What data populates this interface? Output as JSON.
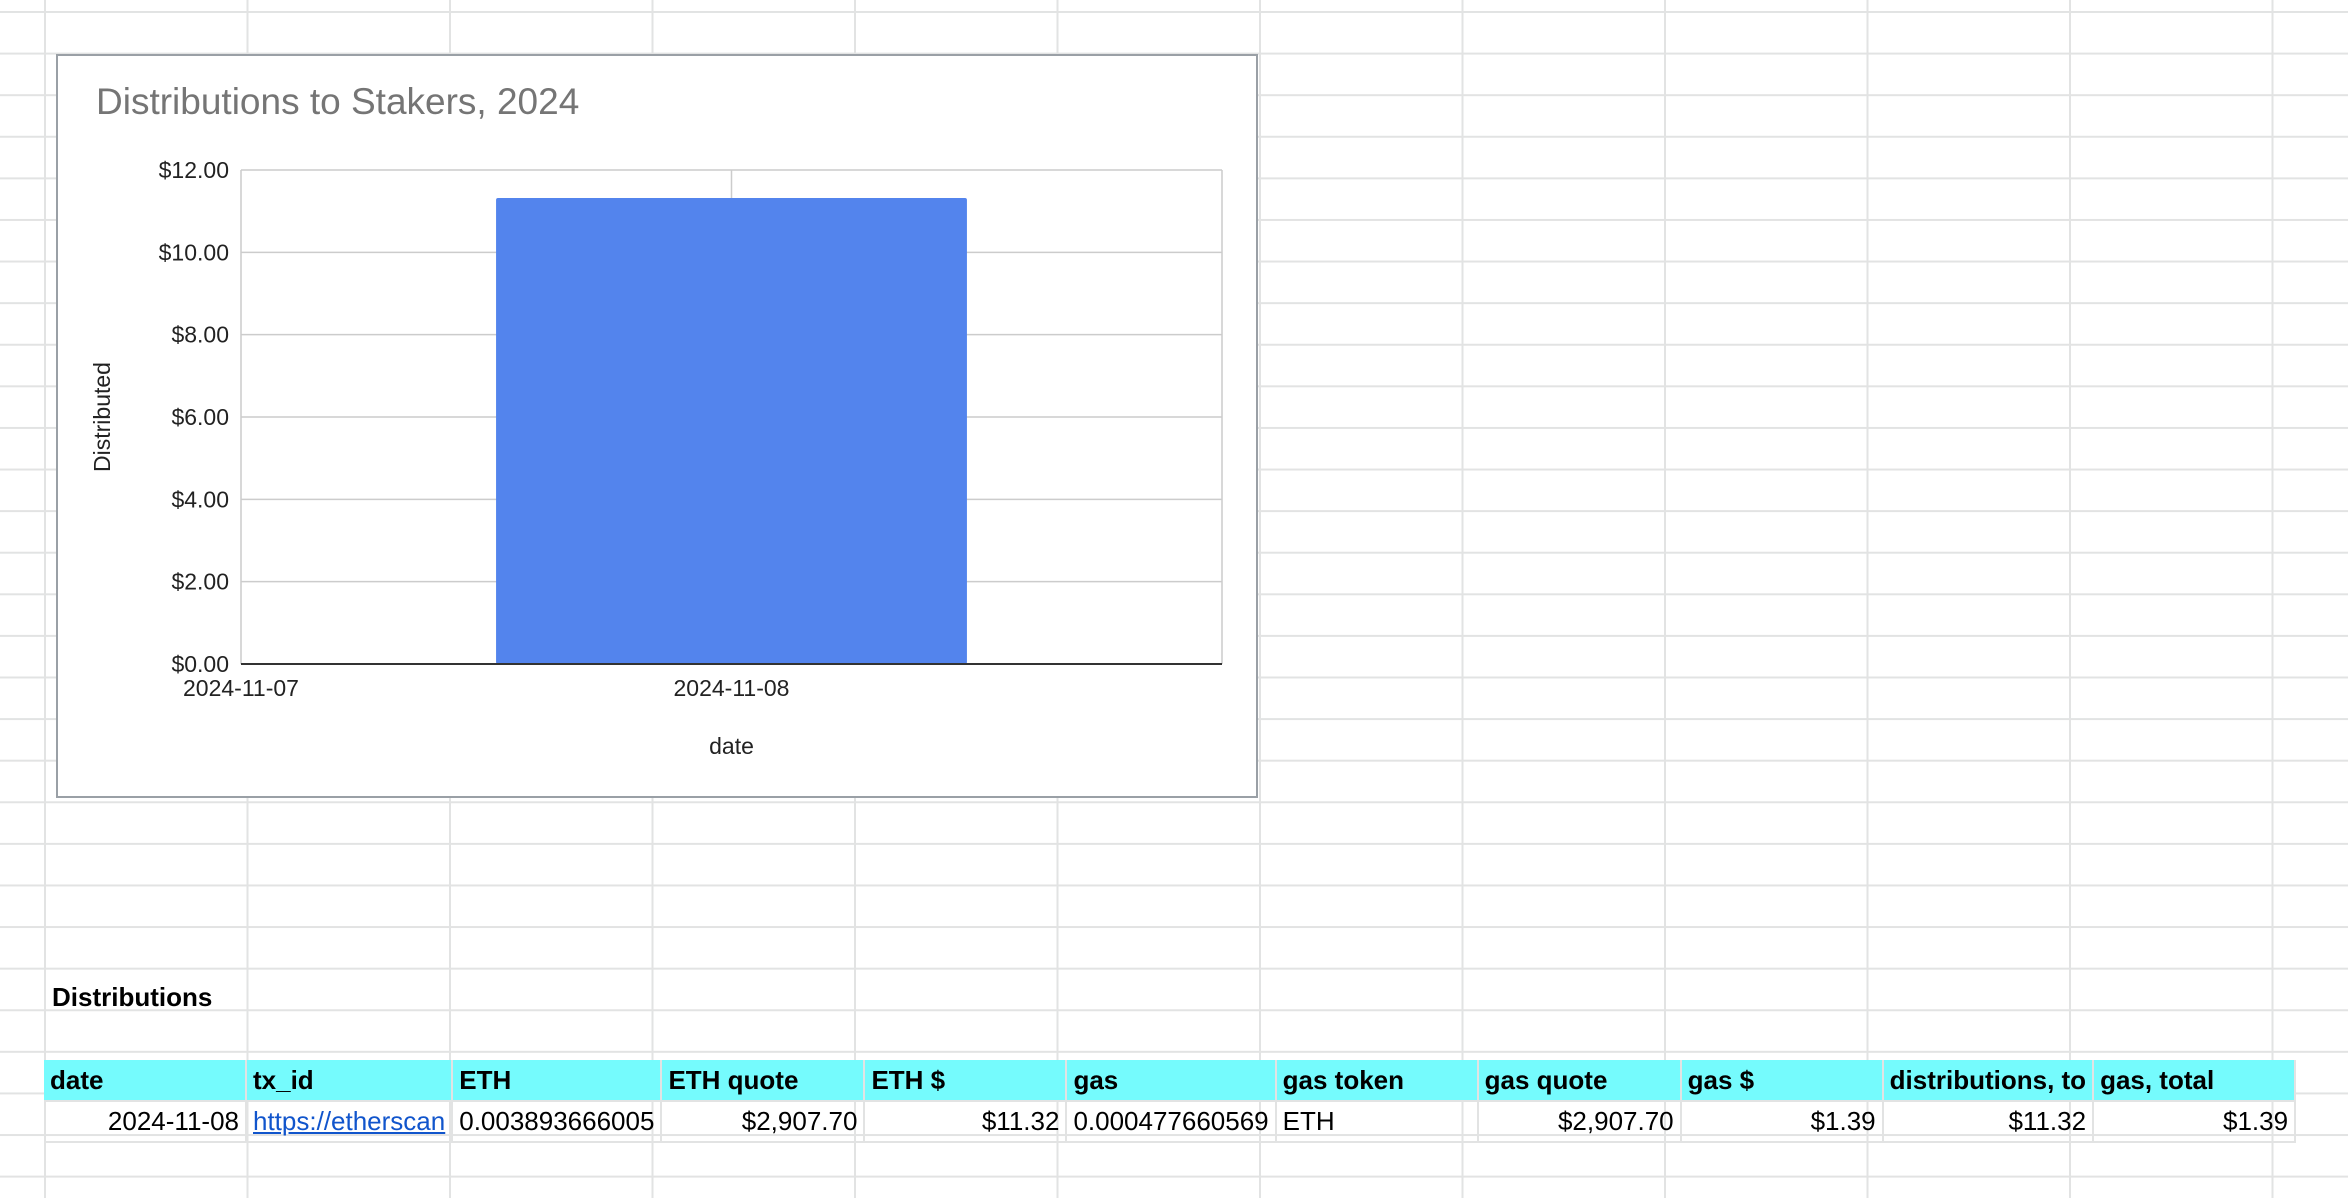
{
  "chart_data": {
    "type": "bar",
    "title": "Distributions to Stakers, 2024",
    "xlabel": "date",
    "ylabel": "Distributed",
    "x_tick_labels": [
      "2024-11-07",
      "2024-11-08"
    ],
    "categories": [
      "2024-11-08"
    ],
    "values": [
      11.32
    ],
    "ylim": [
      0,
      12
    ],
    "y_ticks": [
      0,
      2,
      4,
      6,
      8,
      10,
      12
    ],
    "y_tick_labels": [
      "$0.00",
      "$2.00",
      "$4.00",
      "$6.00",
      "$8.00",
      "$10.00",
      "$12.00"
    ],
    "bar_color": "#5384ed",
    "grid": true,
    "legend": "none"
  },
  "section": {
    "title": "Distributions"
  },
  "table": {
    "header_color": "#75fbfd",
    "link_color": "#1155cc",
    "columns": [
      "date",
      "tx_id",
      "ETH",
      "ETH quote",
      "ETH $",
      "gas",
      "gas token",
      "gas quote",
      "gas $",
      "distributions, to",
      "gas, total"
    ],
    "rows": [
      [
        "2024-11-08",
        "https://etherscan",
        "0.003893666005",
        "$2,907.70",
        "$11.32",
        "0.000477660569",
        "ETH",
        "$2,907.70",
        "$1.39",
        "$11.32",
        "$1.39"
      ]
    ]
  }
}
